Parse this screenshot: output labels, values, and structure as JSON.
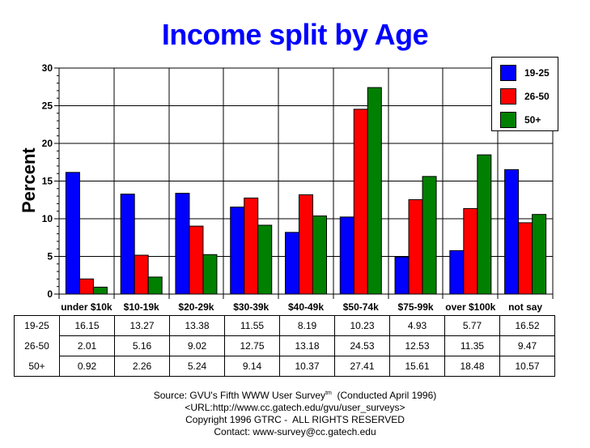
{
  "title": "Income split by Age",
  "colors": {
    "title": "#0000ff",
    "series": [
      "#0000ff",
      "#ff0000",
      "#008000"
    ]
  },
  "chart_data": {
    "type": "bar",
    "title": "Income split by Age",
    "xlabel": "",
    "ylabel": "Percent",
    "ylim": [
      0,
      30
    ],
    "yticks": [
      0,
      5,
      10,
      15,
      20,
      25,
      30
    ],
    "grid": true,
    "legend_position": "top-right",
    "categories": [
      "under $10k",
      "$10-19k",
      "$20-29k",
      "$30-39k",
      "$40-49k",
      "$50-74k",
      "$75-99k",
      "over $100k",
      "not say"
    ],
    "series": [
      {
        "name": "19-25",
        "color": "#0000ff",
        "values": [
          16.15,
          13.27,
          13.38,
          11.55,
          8.19,
          10.23,
          4.93,
          5.77,
          16.52
        ]
      },
      {
        "name": "26-50",
        "color": "#ff0000",
        "values": [
          2.01,
          5.16,
          9.02,
          12.75,
          13.18,
          24.53,
          12.53,
          11.35,
          9.47
        ]
      },
      {
        "name": "50+",
        "color": "#008000",
        "values": [
          0.92,
          2.26,
          5.24,
          9.14,
          10.37,
          27.41,
          15.61,
          18.48,
          10.57
        ]
      }
    ]
  },
  "footer": {
    "source": "Source: GVU's Fifth WWW User Survey",
    "tm": "tm",
    "conducted": "  (Conducted April 1996)",
    "url": "<URL:http://www.cc.gatech.edu/gvu/user_surveys>",
    "copyright": "Copyright 1996 GTRC -  ALL RIGHTS RESERVED",
    "contact": "Contact: www-survey@cc.gatech.edu"
  }
}
